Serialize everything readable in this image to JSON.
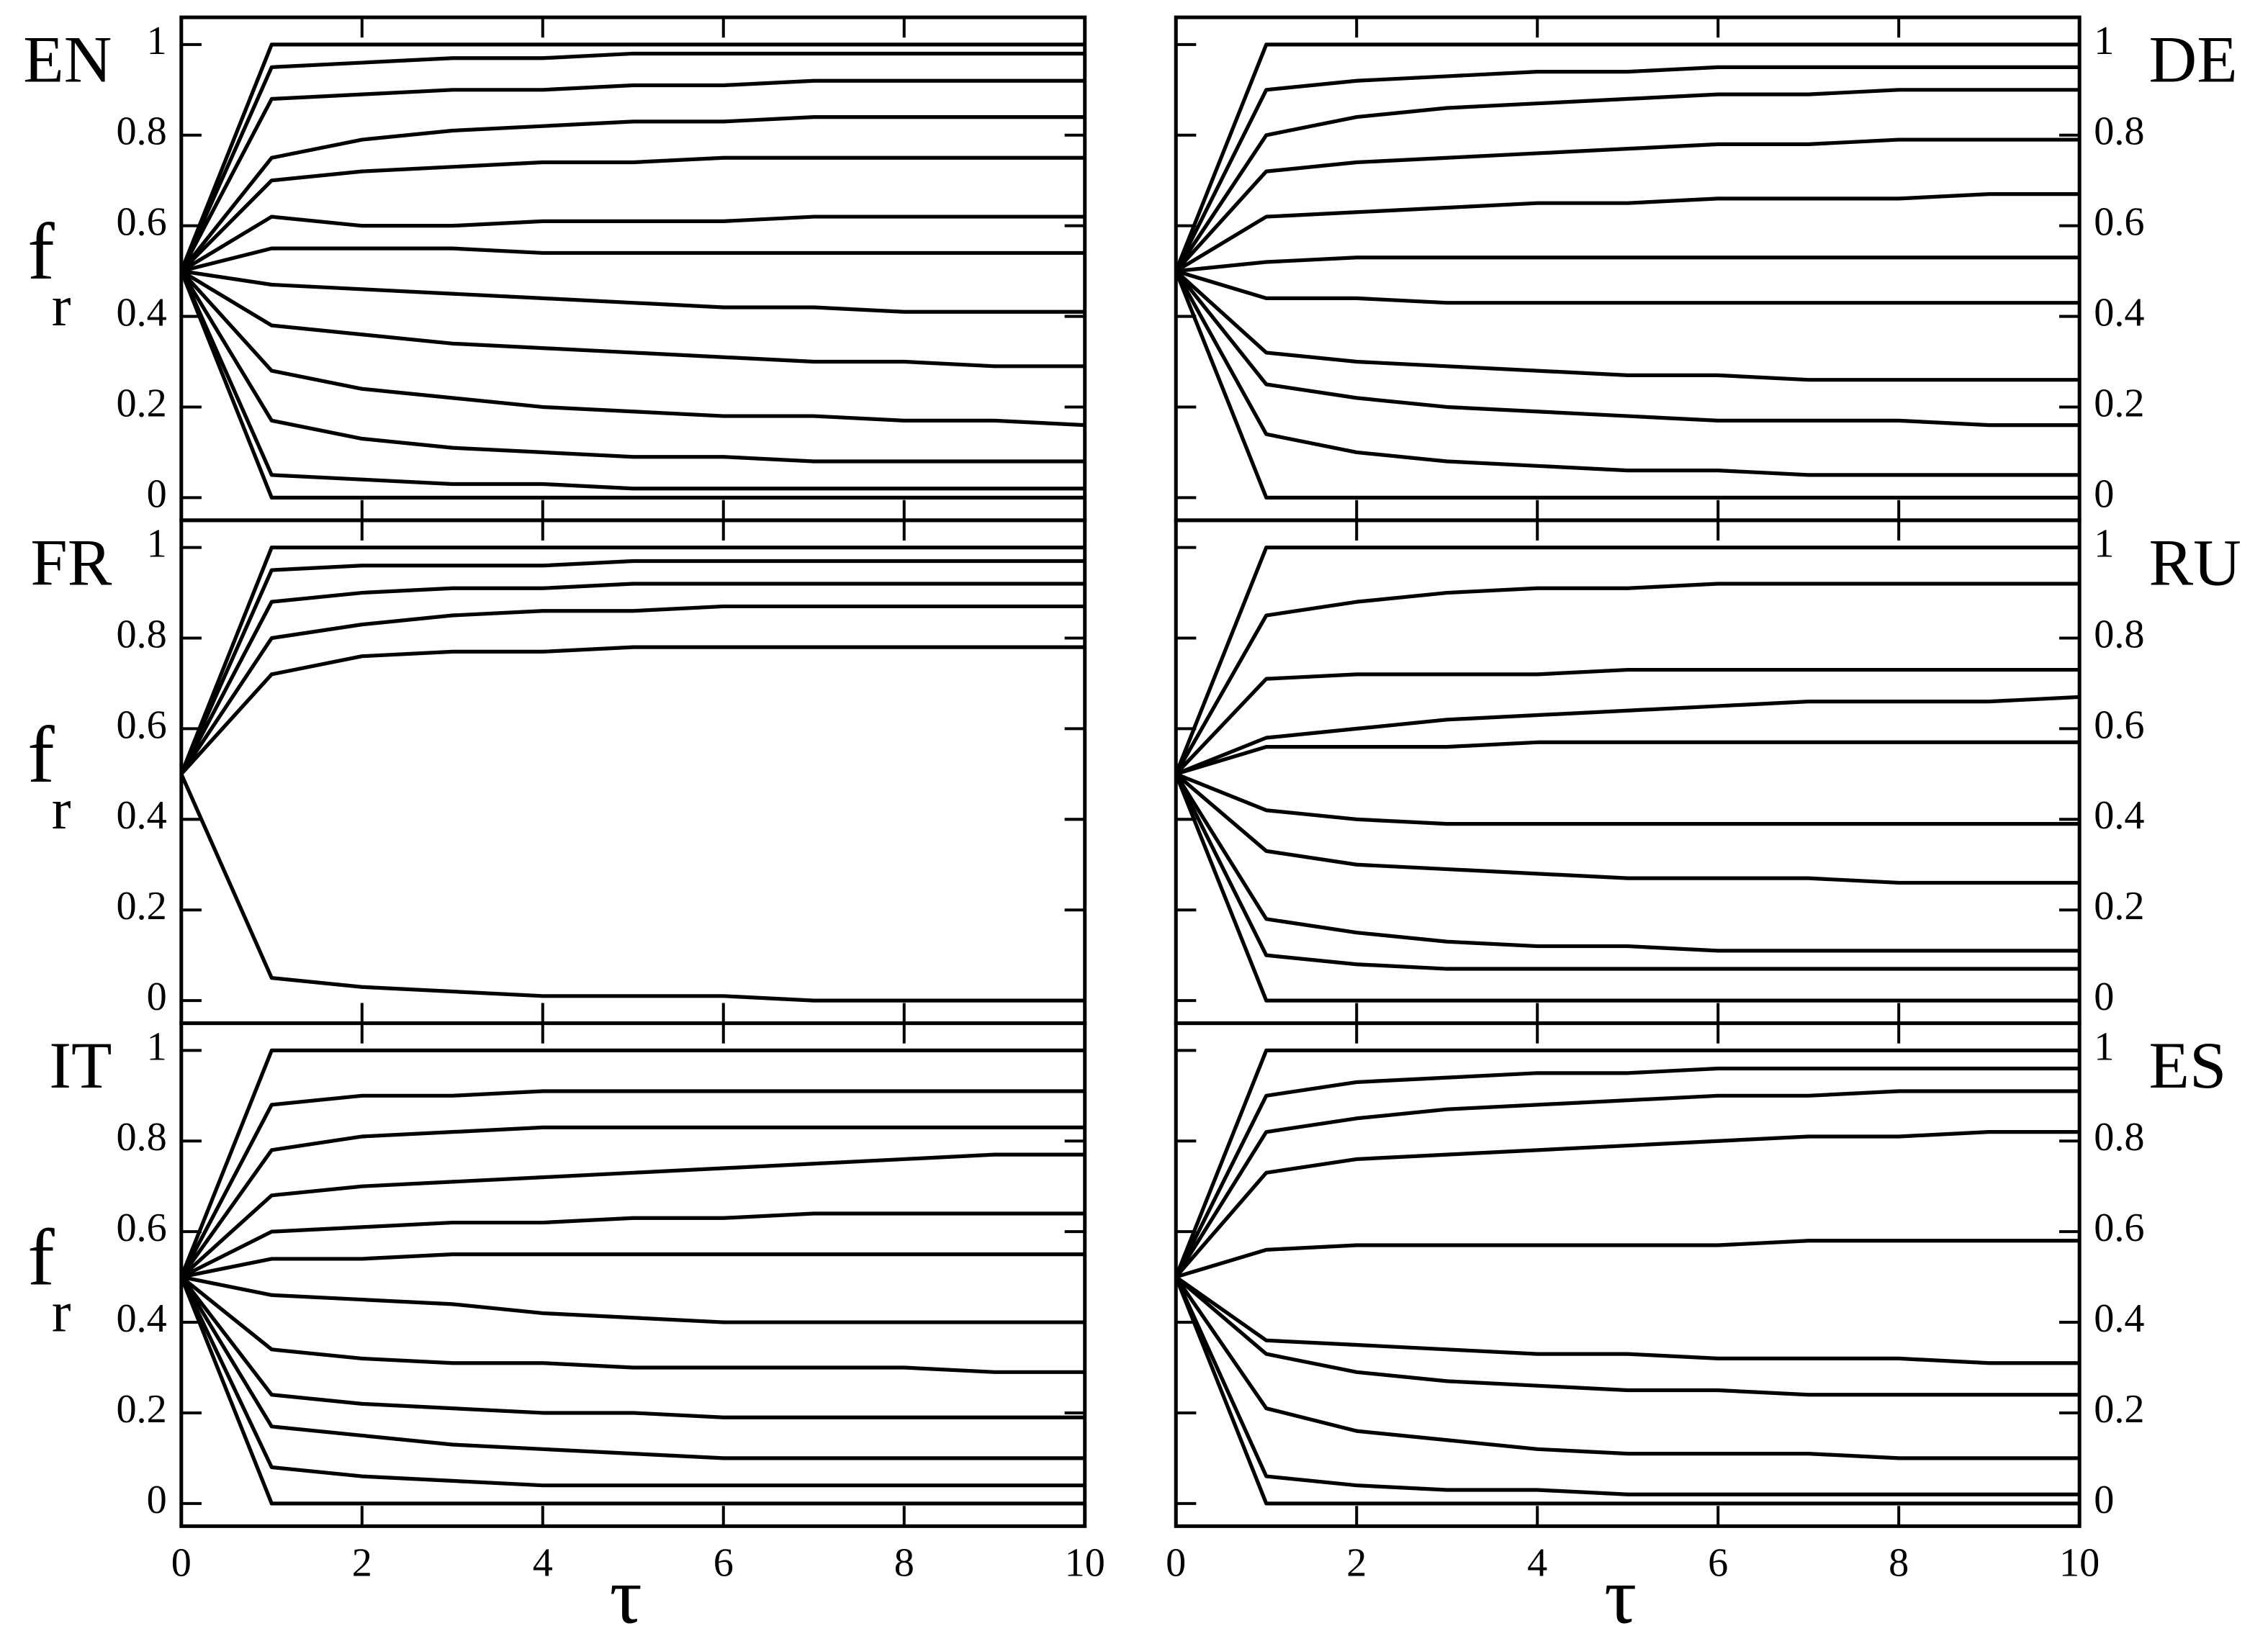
{
  "chart_data": [
    {
      "type": "line",
      "title": "EN",
      "ylabel": "f",
      "ylabel_subscript": "r",
      "yaxis_side": "left",
      "color": "#000000",
      "x": [
        0,
        1,
        2,
        3,
        4,
        5,
        6,
        7,
        8,
        9,
        10
      ],
      "xlim": [
        0,
        10
      ],
      "xticks": [
        0,
        2,
        4,
        6,
        8,
        10
      ],
      "ylim": [
        -0.05,
        1.06
      ],
      "yticks": [
        0,
        0.2,
        0.4,
        0.6,
        0.8,
        1
      ],
      "series": [
        {
          "values": [
            0.5,
            1,
            1,
            1,
            1,
            1,
            1,
            1,
            1,
            1,
            1
          ]
        },
        {
          "values": [
            0.5,
            0.95,
            0.96,
            0.97,
            0.97,
            0.98,
            0.98,
            0.98,
            0.98,
            0.98,
            0.98
          ]
        },
        {
          "values": [
            0.5,
            0.88,
            0.89,
            0.9,
            0.9,
            0.91,
            0.91,
            0.92,
            0.92,
            0.92,
            0.92
          ]
        },
        {
          "values": [
            0.5,
            0.75,
            0.79,
            0.81,
            0.82,
            0.83,
            0.83,
            0.84,
            0.84,
            0.84,
            0.84
          ]
        },
        {
          "values": [
            0.5,
            0.7,
            0.72,
            0.73,
            0.74,
            0.74,
            0.75,
            0.75,
            0.75,
            0.75,
            0.75
          ]
        },
        {
          "values": [
            0.5,
            0.62,
            0.6,
            0.6,
            0.61,
            0.61,
            0.61,
            0.62,
            0.62,
            0.62,
            0.62
          ]
        },
        {
          "values": [
            0.5,
            0.55,
            0.55,
            0.55,
            0.54,
            0.54,
            0.54,
            0.54,
            0.54,
            0.54,
            0.54
          ]
        },
        {
          "values": [
            0.5,
            0.47,
            0.46,
            0.45,
            0.44,
            0.43,
            0.42,
            0.42,
            0.41,
            0.41,
            0.41
          ]
        },
        {
          "values": [
            0.5,
            0.38,
            0.36,
            0.34,
            0.33,
            0.32,
            0.31,
            0.3,
            0.3,
            0.29,
            0.29
          ]
        },
        {
          "values": [
            0.5,
            0.28,
            0.24,
            0.22,
            0.2,
            0.19,
            0.18,
            0.18,
            0.17,
            0.17,
            0.16
          ]
        },
        {
          "values": [
            0.5,
            0.17,
            0.13,
            0.11,
            0.1,
            0.09,
            0.09,
            0.08,
            0.08,
            0.08,
            0.08
          ]
        },
        {
          "values": [
            0.5,
            0.05,
            0.04,
            0.03,
            0.03,
            0.02,
            0.02,
            0.02,
            0.02,
            0.02,
            0.02
          ]
        },
        {
          "values": [
            0.5,
            0,
            0,
            0,
            0,
            0,
            0,
            0,
            0,
            0,
            0
          ]
        }
      ]
    },
    {
      "type": "line",
      "title": "DE",
      "yaxis_side": "right",
      "color": "#000000",
      "x": [
        0,
        1,
        2,
        3,
        4,
        5,
        6,
        7,
        8,
        9,
        10
      ],
      "xlim": [
        0,
        10
      ],
      "xticks": [
        0,
        2,
        4,
        6,
        8,
        10
      ],
      "ylim": [
        -0.05,
        1.06
      ],
      "yticks": [
        0,
        0.2,
        0.4,
        0.6,
        0.8,
        1
      ],
      "series": [
        {
          "values": [
            0.5,
            1,
            1,
            1,
            1,
            1,
            1,
            1,
            1,
            1,
            1
          ]
        },
        {
          "values": [
            0.5,
            0.9,
            0.92,
            0.93,
            0.94,
            0.94,
            0.95,
            0.95,
            0.95,
            0.95,
            0.95
          ]
        },
        {
          "values": [
            0.5,
            0.8,
            0.84,
            0.86,
            0.87,
            0.88,
            0.89,
            0.89,
            0.9,
            0.9,
            0.9
          ]
        },
        {
          "values": [
            0.5,
            0.72,
            0.74,
            0.75,
            0.76,
            0.77,
            0.78,
            0.78,
            0.79,
            0.79,
            0.79
          ]
        },
        {
          "values": [
            0.5,
            0.62,
            0.63,
            0.64,
            0.65,
            0.65,
            0.66,
            0.66,
            0.66,
            0.67,
            0.67
          ]
        },
        {
          "values": [
            0.5,
            0.52,
            0.53,
            0.53,
            0.53,
            0.53,
            0.53,
            0.53,
            0.53,
            0.53,
            0.53
          ]
        },
        {
          "values": [
            0.5,
            0.44,
            0.44,
            0.43,
            0.43,
            0.43,
            0.43,
            0.43,
            0.43,
            0.43,
            0.43
          ]
        },
        {
          "values": [
            0.5,
            0.32,
            0.3,
            0.29,
            0.28,
            0.27,
            0.27,
            0.26,
            0.26,
            0.26,
            0.26
          ]
        },
        {
          "values": [
            0.5,
            0.25,
            0.22,
            0.2,
            0.19,
            0.18,
            0.17,
            0.17,
            0.17,
            0.16,
            0.16
          ]
        },
        {
          "values": [
            0.5,
            0.14,
            0.1,
            0.08,
            0.07,
            0.06,
            0.06,
            0.05,
            0.05,
            0.05,
            0.05
          ]
        },
        {
          "values": [
            0.5,
            0,
            0,
            0,
            0,
            0,
            0,
            0,
            0,
            0,
            0
          ]
        }
      ]
    },
    {
      "type": "line",
      "title": "FR",
      "ylabel": "f",
      "ylabel_subscript": "r",
      "yaxis_side": "left",
      "color": "#000000",
      "x": [
        0,
        1,
        2,
        3,
        4,
        5,
        6,
        7,
        8,
        9,
        10
      ],
      "xlim": [
        0,
        10
      ],
      "xticks": [
        0,
        2,
        4,
        6,
        8,
        10
      ],
      "ylim": [
        -0.05,
        1.06
      ],
      "yticks": [
        0,
        0.2,
        0.4,
        0.6,
        0.8,
        1
      ],
      "series": [
        {
          "values": [
            0.5,
            1,
            1,
            1,
            1,
            1,
            1,
            1,
            1,
            1,
            1
          ]
        },
        {
          "values": [
            0.5,
            0.95,
            0.96,
            0.96,
            0.96,
            0.97,
            0.97,
            0.97,
            0.97,
            0.97,
            0.97
          ]
        },
        {
          "values": [
            0.5,
            0.88,
            0.9,
            0.91,
            0.91,
            0.92,
            0.92,
            0.92,
            0.92,
            0.92,
            0.92
          ]
        },
        {
          "values": [
            0.5,
            0.8,
            0.83,
            0.85,
            0.86,
            0.86,
            0.87,
            0.87,
            0.87,
            0.87,
            0.87
          ]
        },
        {
          "values": [
            0.5,
            0.72,
            0.76,
            0.77,
            0.77,
            0.78,
            0.78,
            0.78,
            0.78,
            0.78,
            0.78
          ]
        },
        {
          "values": [
            0.5,
            0.05,
            0.03,
            0.02,
            0.01,
            0.01,
            0.01,
            0,
            0,
            0,
            0
          ]
        }
      ]
    },
    {
      "type": "line",
      "title": "RU",
      "yaxis_side": "right",
      "color": "#000000",
      "x": [
        0,
        1,
        2,
        3,
        4,
        5,
        6,
        7,
        8,
        9,
        10
      ],
      "xlim": [
        0,
        10
      ],
      "xticks": [
        0,
        2,
        4,
        6,
        8,
        10
      ],
      "ylim": [
        -0.05,
        1.06
      ],
      "yticks": [
        0,
        0.2,
        0.4,
        0.6,
        0.8,
        1
      ],
      "series": [
        {
          "values": [
            0.5,
            1,
            1,
            1,
            1,
            1,
            1,
            1,
            1,
            1,
            1
          ]
        },
        {
          "values": [
            0.5,
            0.85,
            0.88,
            0.9,
            0.91,
            0.91,
            0.92,
            0.92,
            0.92,
            0.92,
            0.92
          ]
        },
        {
          "values": [
            0.5,
            0.71,
            0.72,
            0.72,
            0.72,
            0.73,
            0.73,
            0.73,
            0.73,
            0.73,
            0.73
          ]
        },
        {
          "values": [
            0.5,
            0.58,
            0.6,
            0.62,
            0.63,
            0.64,
            0.65,
            0.66,
            0.66,
            0.66,
            0.67
          ]
        },
        {
          "values": [
            0.5,
            0.56,
            0.56,
            0.56,
            0.57,
            0.57,
            0.57,
            0.57,
            0.57,
            0.57,
            0.57
          ]
        },
        {
          "values": [
            0.5,
            0.42,
            0.4,
            0.39,
            0.39,
            0.39,
            0.39,
            0.39,
            0.39,
            0.39,
            0.39
          ]
        },
        {
          "values": [
            0.5,
            0.33,
            0.3,
            0.29,
            0.28,
            0.27,
            0.27,
            0.27,
            0.26,
            0.26,
            0.26
          ]
        },
        {
          "values": [
            0.5,
            0.18,
            0.15,
            0.13,
            0.12,
            0.12,
            0.11,
            0.11,
            0.11,
            0.11,
            0.11
          ]
        },
        {
          "values": [
            0.5,
            0.1,
            0.08,
            0.07,
            0.07,
            0.07,
            0.07,
            0.07,
            0.07,
            0.07,
            0.07
          ]
        },
        {
          "values": [
            0.5,
            0,
            0,
            0,
            0,
            0,
            0,
            0,
            0,
            0,
            0
          ]
        }
      ]
    },
    {
      "type": "line",
      "title": "IT",
      "ylabel": "f",
      "ylabel_subscript": "r",
      "xlabel": "τ",
      "yaxis_side": "left",
      "color": "#000000",
      "x": [
        0,
        1,
        2,
        3,
        4,
        5,
        6,
        7,
        8,
        9,
        10
      ],
      "xlim": [
        0,
        10
      ],
      "xticks": [
        0,
        2,
        4,
        6,
        8,
        10
      ],
      "ylim": [
        -0.05,
        1.06
      ],
      "yticks": [
        0,
        0.2,
        0.4,
        0.6,
        0.8,
        1
      ],
      "series": [
        {
          "values": [
            0.5,
            1,
            1,
            1,
            1,
            1,
            1,
            1,
            1,
            1,
            1
          ]
        },
        {
          "values": [
            0.5,
            0.88,
            0.9,
            0.9,
            0.91,
            0.91,
            0.91,
            0.91,
            0.91,
            0.91,
            0.91
          ]
        },
        {
          "values": [
            0.5,
            0.78,
            0.81,
            0.82,
            0.83,
            0.83,
            0.83,
            0.83,
            0.83,
            0.83,
            0.83
          ]
        },
        {
          "values": [
            0.5,
            0.68,
            0.7,
            0.71,
            0.72,
            0.73,
            0.74,
            0.75,
            0.76,
            0.77,
            0.77
          ]
        },
        {
          "values": [
            0.5,
            0.6,
            0.61,
            0.62,
            0.62,
            0.63,
            0.63,
            0.64,
            0.64,
            0.64,
            0.64
          ]
        },
        {
          "values": [
            0.5,
            0.54,
            0.54,
            0.55,
            0.55,
            0.55,
            0.55,
            0.55,
            0.55,
            0.55,
            0.55
          ]
        },
        {
          "values": [
            0.5,
            0.46,
            0.45,
            0.44,
            0.42,
            0.41,
            0.4,
            0.4,
            0.4,
            0.4,
            0.4
          ]
        },
        {
          "values": [
            0.5,
            0.34,
            0.32,
            0.31,
            0.31,
            0.3,
            0.3,
            0.3,
            0.3,
            0.29,
            0.29
          ]
        },
        {
          "values": [
            0.5,
            0.24,
            0.22,
            0.21,
            0.2,
            0.2,
            0.19,
            0.19,
            0.19,
            0.19,
            0.19
          ]
        },
        {
          "values": [
            0.5,
            0.17,
            0.15,
            0.13,
            0.12,
            0.11,
            0.1,
            0.1,
            0.1,
            0.1,
            0.1
          ]
        },
        {
          "values": [
            0.5,
            0.08,
            0.06,
            0.05,
            0.04,
            0.04,
            0.04,
            0.04,
            0.04,
            0.04,
            0.04
          ]
        },
        {
          "values": [
            0.5,
            0,
            0,
            0,
            0,
            0,
            0,
            0,
            0,
            0,
            0
          ]
        }
      ]
    },
    {
      "type": "line",
      "title": "ES",
      "xlabel": "τ",
      "yaxis_side": "right",
      "color": "#000000",
      "x": [
        0,
        1,
        2,
        3,
        4,
        5,
        6,
        7,
        8,
        9,
        10
      ],
      "xlim": [
        0,
        10
      ],
      "xticks": [
        0,
        2,
        4,
        6,
        8,
        10
      ],
      "ylim": [
        -0.05,
        1.06
      ],
      "yticks": [
        0,
        0.2,
        0.4,
        0.6,
        0.8,
        1
      ],
      "series": [
        {
          "values": [
            0.5,
            1,
            1,
            1,
            1,
            1,
            1,
            1,
            1,
            1,
            1
          ]
        },
        {
          "values": [
            0.5,
            0.9,
            0.93,
            0.94,
            0.95,
            0.95,
            0.96,
            0.96,
            0.96,
            0.96,
            0.96
          ]
        },
        {
          "values": [
            0.5,
            0.82,
            0.85,
            0.87,
            0.88,
            0.89,
            0.9,
            0.9,
            0.91,
            0.91,
            0.91
          ]
        },
        {
          "values": [
            0.5,
            0.73,
            0.76,
            0.77,
            0.78,
            0.79,
            0.8,
            0.81,
            0.81,
            0.82,
            0.82
          ]
        },
        {
          "values": [
            0.5,
            0.56,
            0.57,
            0.57,
            0.57,
            0.57,
            0.57,
            0.58,
            0.58,
            0.58,
            0.58
          ]
        },
        {
          "values": [
            0.5,
            0.36,
            0.35,
            0.34,
            0.33,
            0.33,
            0.32,
            0.32,
            0.32,
            0.31,
            0.31
          ]
        },
        {
          "values": [
            0.5,
            0.33,
            0.29,
            0.27,
            0.26,
            0.25,
            0.25,
            0.24,
            0.24,
            0.24,
            0.24
          ]
        },
        {
          "values": [
            0.5,
            0.21,
            0.16,
            0.14,
            0.12,
            0.11,
            0.11,
            0.11,
            0.1,
            0.1,
            0.1
          ]
        },
        {
          "values": [
            0.5,
            0.06,
            0.04,
            0.03,
            0.03,
            0.02,
            0.02,
            0.02,
            0.02,
            0.02,
            0.02
          ]
        },
        {
          "values": [
            0.5,
            0,
            0,
            0,
            0,
            0,
            0,
            0,
            0,
            0,
            0
          ]
        }
      ]
    }
  ]
}
